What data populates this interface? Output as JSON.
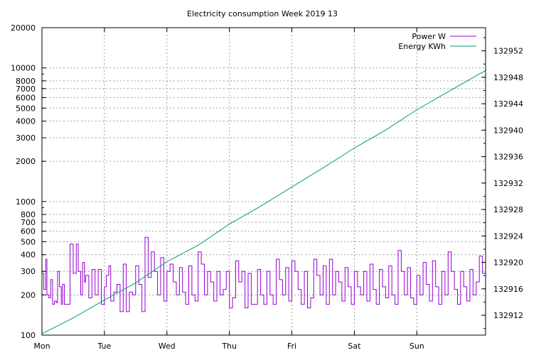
{
  "chart_data": {
    "type": "line",
    "title": "Electricity consumption Week 2019 13",
    "xlabel": "",
    "ylabel": "",
    "y2label": "",
    "grid": true,
    "legend_position": "top-right",
    "x_categories": [
      "Mon",
      "Tue",
      "Wed",
      "Thu",
      "Fri",
      "Sat",
      "Sun"
    ],
    "x_range": [
      0,
      7.1
    ],
    "y_scale": "log",
    "y_range": [
      100,
      20000
    ],
    "y_ticks": [
      100,
      200,
      300,
      400,
      500,
      600,
      700,
      800,
      1000,
      2000,
      3000,
      4000,
      5000,
      6000,
      7000,
      8000,
      10000,
      20000
    ],
    "y2_range": [
      132909,
      132955.5
    ],
    "y2_ticks": [
      132912,
      132916,
      132920,
      132924,
      132928,
      132932,
      132936,
      132940,
      132944,
      132948,
      132952
    ],
    "series": [
      {
        "name": "Power W",
        "color": "#9400d3",
        "axis": "y",
        "step": true,
        "x": [
          0,
          0.03,
          0.06,
          0.08,
          0.11,
          0.14,
          0.17,
          0.2,
          0.23,
          0.25,
          0.28,
          0.31,
          0.33,
          0.36,
          0.4,
          0.45,
          0.5,
          0.52,
          0.55,
          0.58,
          0.62,
          0.65,
          0.68,
          0.7,
          0.75,
          0.8,
          0.85,
          0.9,
          0.95,
          1.0,
          1.03,
          1.07,
          1.1,
          1.15,
          1.2,
          1.25,
          1.3,
          1.35,
          1.4,
          1.45,
          1.5,
          1.55,
          1.6,
          1.65,
          1.7,
          1.75,
          1.8,
          1.85,
          1.9,
          1.95,
          2.0,
          2.05,
          2.1,
          2.15,
          2.2,
          2.25,
          2.3,
          2.35,
          2.4,
          2.45,
          2.5,
          2.55,
          2.6,
          2.65,
          2.7,
          2.75,
          2.8,
          2.85,
          2.9,
          2.95,
          3.0,
          3.05,
          3.1,
          3.15,
          3.2,
          3.25,
          3.3,
          3.35,
          3.4,
          3.45,
          3.5,
          3.55,
          3.6,
          3.65,
          3.7,
          3.75,
          3.8,
          3.85,
          3.9,
          3.95,
          4.0,
          4.05,
          4.1,
          4.15,
          4.2,
          4.25,
          4.3,
          4.35,
          4.4,
          4.45,
          4.5,
          4.55,
          4.6,
          4.65,
          4.7,
          4.75,
          4.8,
          4.85,
          4.9,
          4.95,
          5.0,
          5.05,
          5.1,
          5.15,
          5.2,
          5.25,
          5.3,
          5.35,
          5.4,
          5.45,
          5.5,
          5.55,
          5.6,
          5.65,
          5.7,
          5.75,
          5.8,
          5.85,
          5.9,
          5.95,
          6.0,
          6.05,
          6.1,
          6.15,
          6.2,
          6.25,
          6.3,
          6.35,
          6.4,
          6.45,
          6.5,
          6.55,
          6.6,
          6.65,
          6.7,
          6.75,
          6.8,
          6.85,
          6.9,
          6.95,
          7.0,
          7.05
        ],
        "values": [
          290,
          220,
          370,
          200,
          190,
          260,
          170,
          180,
          175,
          300,
          230,
          170,
          240,
          170,
          170,
          480,
          290,
          290,
          480,
          300,
          200,
          350,
          250,
          280,
          190,
          310,
          200,
          310,
          170,
          230,
          280,
          330,
          180,
          210,
          240,
          150,
          340,
          150,
          210,
          200,
          330,
          240,
          150,
          540,
          270,
          420,
          300,
          200,
          380,
          180,
          300,
          340,
          250,
          200,
          320,
          210,
          170,
          330,
          200,
          180,
          420,
          340,
          200,
          300,
          250,
          180,
          300,
          200,
          220,
          300,
          160,
          190,
          360,
          250,
          300,
          160,
          290,
          170,
          170,
          310,
          200,
          170,
          300,
          200,
          170,
          370,
          260,
          200,
          320,
          180,
          360,
          300,
          220,
          170,
          300,
          160,
          190,
          370,
          280,
          200,
          330,
          170,
          370,
          200,
          300,
          250,
          180,
          320,
          230,
          170,
          300,
          230,
          200,
          300,
          180,
          340,
          220,
          170,
          310,
          230,
          190,
          330,
          200,
          170,
          430,
          300,
          200,
          320,
          190,
          170,
          280,
          200,
          350,
          240,
          180,
          360,
          230,
          170,
          300,
          200,
          420,
          300,
          220,
          170,
          300,
          230,
          180,
          310,
          200,
          250,
          390,
          290
        ]
      },
      {
        "name": "Energy KWh",
        "color": "#009e73",
        "axis": "y2",
        "step": false,
        "x": [
          0,
          0.5,
          1.0,
          1.5,
          2.0,
          2.5,
          3.0,
          3.5,
          4.0,
          4.5,
          5.0,
          5.5,
          6.0,
          6.5,
          7.0,
          7.1
        ],
        "values": [
          132909.2,
          132911.6,
          132914.3,
          132916.9,
          132920.1,
          132922.6,
          132925.8,
          132928.5,
          132931.4,
          132934.3,
          132937.3,
          132940.0,
          132943.1,
          132945.8,
          132948.5,
          132949.0
        ]
      }
    ]
  }
}
